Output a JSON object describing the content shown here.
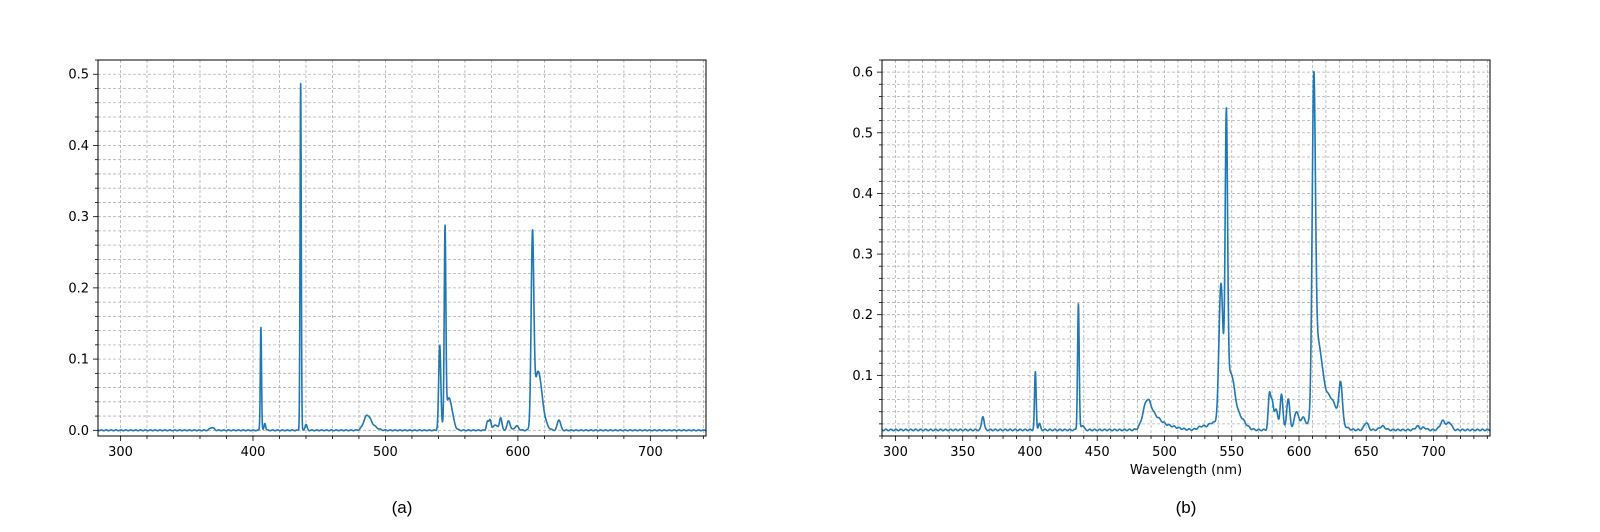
{
  "colors": {
    "line": "#1f77b4",
    "grid": "#b0b0b0",
    "axes": "#000000"
  },
  "chart_data": [
    {
      "type": "line",
      "caption": "(a)",
      "xlabel": "",
      "ylabel": "",
      "xlim": [
        283,
        742
      ],
      "ylim": [
        -0.008,
        0.52
      ],
      "xticks": [
        300,
        400,
        500,
        600,
        700
      ],
      "xminor_step": 20,
      "yticks": [
        0.0,
        0.1,
        0.2,
        0.3,
        0.4,
        0.5
      ],
      "yminor_step": 0.02,
      "grid": true,
      "baseline": 0.0,
      "peaks": [
        [
          369,
          0.004,
          1.5
        ],
        [
          406,
          0.145,
          0.45
        ],
        [
          409,
          0.01,
          0.6
        ],
        [
          436,
          0.487,
          0.45
        ],
        [
          440,
          0.008,
          0.8
        ],
        [
          486,
          0.018,
          2.5
        ],
        [
          490,
          0.006,
          3.5
        ],
        [
          541,
          0.118,
          0.8
        ],
        [
          545,
          0.266,
          0.6
        ],
        [
          548,
          0.045,
          2.5
        ],
        [
          577,
          0.012,
          0.8
        ],
        [
          579,
          0.015,
          0.8
        ],
        [
          583,
          0.008,
          1.5
        ],
        [
          587,
          0.018,
          0.9
        ],
        [
          593,
          0.013,
          1.2
        ],
        [
          599,
          0.006,
          1.5
        ],
        [
          611,
          0.26,
          1.0
        ],
        [
          615,
          0.07,
          2.5
        ],
        [
          618,
          0.02,
          3.0
        ],
        [
          631,
          0.015,
          1.2
        ]
      ]
    },
    {
      "type": "line",
      "caption": "(b)",
      "xlabel": "Wavelength (nm)",
      "ylabel": "",
      "xlim": [
        290,
        742
      ],
      "ylim": [
        0.0,
        0.62
      ],
      "xticks": [
        300,
        350,
        400,
        450,
        500,
        550,
        600,
        650,
        700
      ],
      "xminor_step": 10,
      "yticks": [
        0.1,
        0.2,
        0.3,
        0.4,
        0.5,
        0.6
      ],
      "yminor_step": 0.02,
      "grid": true,
      "baseline": 0.01,
      "peaks": [
        [
          365,
          0.023,
          0.9
        ],
        [
          404,
          0.095,
          0.6
        ],
        [
          407,
          0.01,
          0.8
        ],
        [
          436,
          0.208,
          0.6
        ],
        [
          439,
          0.008,
          1.0
        ],
        [
          487,
          0.043,
          3.0
        ],
        [
          493,
          0.015,
          4.0
        ],
        [
          500,
          0.008,
          8.0
        ],
        [
          528,
          0.006,
          3.0
        ],
        [
          536,
          0.012,
          3.0
        ],
        [
          542,
          0.235,
          1.5
        ],
        [
          546,
          0.47,
          0.9
        ],
        [
          549,
          0.09,
          3.0
        ],
        [
          556,
          0.02,
          4.0
        ],
        [
          578,
          0.055,
          0.9
        ],
        [
          580,
          0.045,
          1.0
        ],
        [
          583,
          0.035,
          1.2
        ],
        [
          587,
          0.06,
          1.0
        ],
        [
          592,
          0.05,
          1.2
        ],
        [
          598,
          0.03,
          1.5
        ],
        [
          603,
          0.02,
          2.0
        ],
        [
          611,
          0.508,
          1.2
        ],
        [
          614,
          0.12,
          3.0
        ],
        [
          620,
          0.04,
          5.0
        ],
        [
          626,
          0.025,
          5.0
        ],
        [
          631,
          0.062,
          1.2
        ],
        [
          650,
          0.012,
          1.5
        ],
        [
          662,
          0.006,
          2.0
        ],
        [
          688,
          0.006,
          1.5
        ],
        [
          693,
          0.004,
          1.5
        ],
        [
          707,
          0.015,
          2.0
        ],
        [
          712,
          0.012,
          1.5
        ]
      ]
    }
  ]
}
